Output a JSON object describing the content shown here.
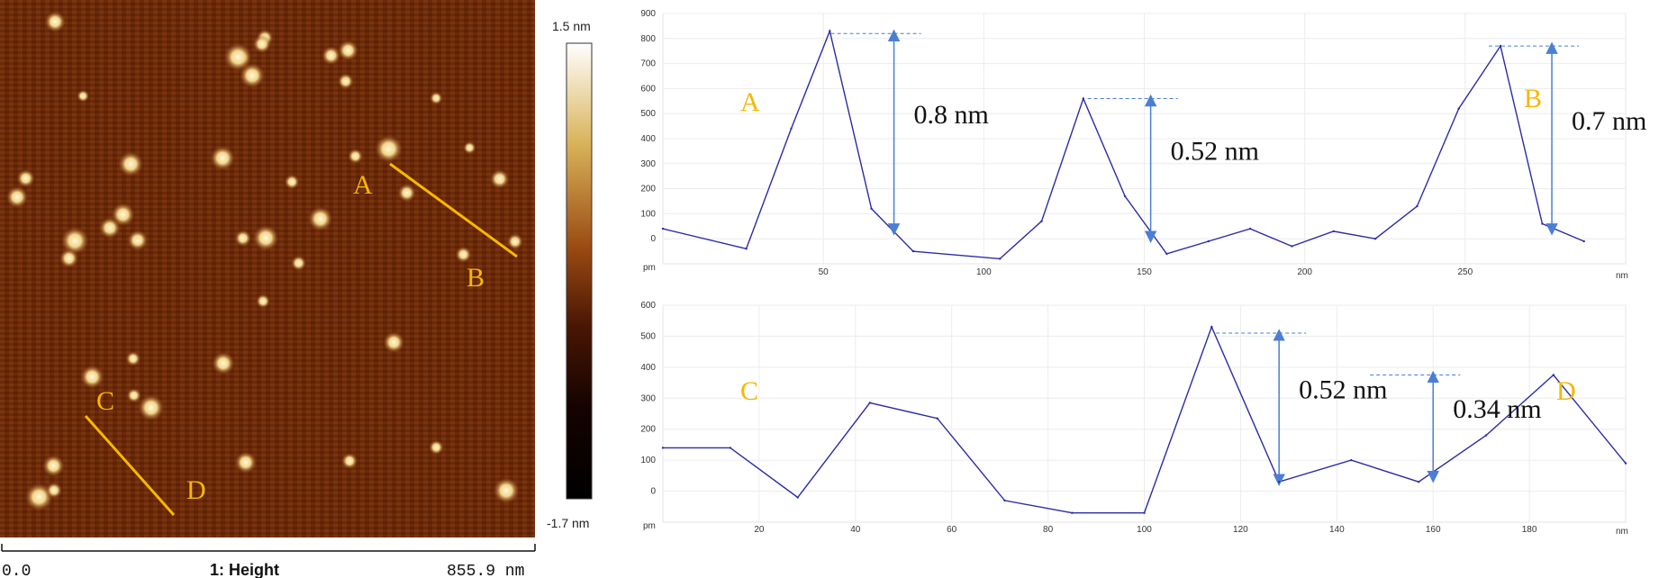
{
  "afm_image": {
    "scale_start": "0.0",
    "channel": "1: Height",
    "scale_end": "855.9 nm",
    "colorbar_max": "1.5 nm",
    "colorbar_min": "-1.7 nm",
    "line_labels": [
      "A",
      "B",
      "C",
      "D"
    ]
  },
  "colors": {
    "profile_line": "#2b2ba8",
    "arrow": "#4a7fd4",
    "letters": "#f5b800",
    "afm_background": "#6b2a08",
    "afm_particle": "#f7e6a8"
  },
  "chart_data": [
    {
      "type": "line",
      "name": "profile-AB",
      "x_unit": "nm",
      "y_unit": "pm",
      "xlim": [
        0,
        300
      ],
      "ylim": [
        -100,
        900
      ],
      "x_ticks": [
        "50",
        "100",
        "150",
        "200",
        "250"
      ],
      "y_ticks": [
        "900",
        "800",
        "700",
        "600",
        "500",
        "400",
        "300",
        "200",
        "100",
        "0"
      ],
      "x": [
        0,
        26,
        40,
        52,
        65,
        78,
        105,
        118,
        131,
        144,
        157,
        170,
        183,
        196,
        209,
        222,
        235,
        248,
        261,
        274,
        287
      ],
      "y": [
        40,
        -40,
        440,
        830,
        120,
        -50,
        -80,
        70,
        560,
        170,
        -60,
        -10,
        40,
        -30,
        30,
        0,
        130,
        520,
        770,
        60,
        -10
      ],
      "annotations": [
        {
          "label": "0.8 nm",
          "x": 72,
          "y_top": 820,
          "y_bottom": 30
        },
        {
          "label": "0.52 nm",
          "x": 152,
          "y_top": 560,
          "y_bottom": 0
        },
        {
          "label": "0.7 nm",
          "x": 277,
          "y_top": 770,
          "y_bottom": 30
        }
      ],
      "endpoint_labels": [
        "A",
        "B"
      ]
    },
    {
      "type": "line",
      "name": "profile-CD",
      "x_unit": "nm",
      "y_unit": "pm",
      "xlim": [
        0,
        200
      ],
      "ylim": [
        -100,
        600
      ],
      "x_ticks": [
        "20",
        "40",
        "60",
        "80",
        "100",
        "120",
        "140",
        "160",
        "180"
      ],
      "y_ticks": [
        "600",
        "500",
        "400",
        "300",
        "200",
        "100",
        "0"
      ],
      "x": [
        0,
        14,
        28,
        43,
        57,
        71,
        85,
        100,
        114,
        128,
        143,
        157,
        171,
        185,
        200
      ],
      "y": [
        140,
        140,
        -20,
        285,
        235,
        -30,
        -70,
        -70,
        530,
        30,
        100,
        30,
        180,
        375,
        90
      ],
      "annotations": [
        {
          "label": "0.52 nm",
          "x": 128,
          "y_top": 510,
          "y_bottom": 30
        },
        {
          "label": "0.34 nm",
          "x": 160,
          "y_top": 375,
          "y_bottom": 40
        }
      ],
      "endpoint_labels": [
        "C",
        "D"
      ]
    }
  ]
}
